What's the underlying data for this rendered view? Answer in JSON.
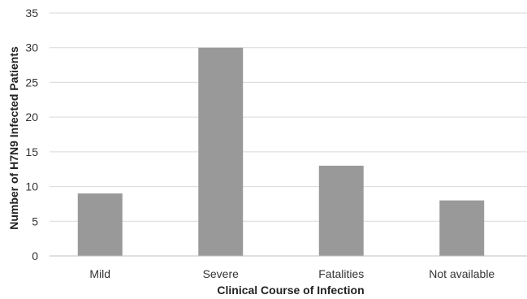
{
  "chart_data": {
    "type": "bar",
    "categories": [
      "Mild",
      "Severe",
      "Fatalities",
      "Not available"
    ],
    "values": [
      9,
      30,
      13,
      8
    ],
    "title": "",
    "xlabel": "Clinical Course of Infection",
    "ylabel": "Number of H7N9 Infected Patients",
    "ylim": [
      0,
      35
    ],
    "yticks": [
      0,
      5,
      10,
      15,
      20,
      25,
      30,
      35
    ],
    "grid": true,
    "legend": "none",
    "bar_color": "#999999"
  }
}
